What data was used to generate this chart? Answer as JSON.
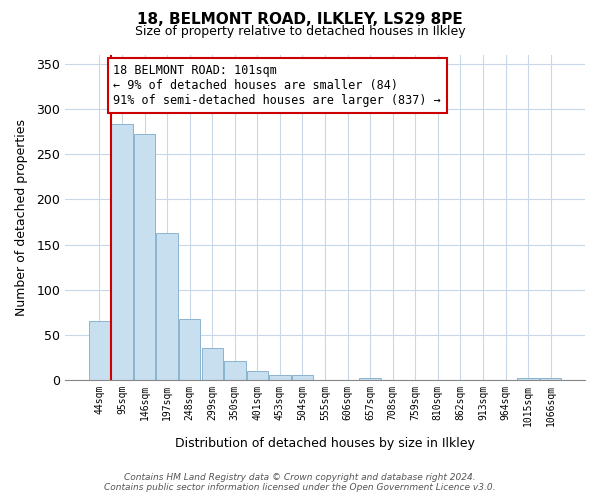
{
  "title": "18, BELMONT ROAD, ILKLEY, LS29 8PE",
  "subtitle": "Size of property relative to detached houses in Ilkley",
  "xlabel": "Distribution of detached houses by size in Ilkley",
  "ylabel": "Number of detached properties",
  "bar_color": "#c8dff0",
  "bar_edge_color": "#8ab4d0",
  "categories": [
    "44sqm",
    "95sqm",
    "146sqm",
    "197sqm",
    "248sqm",
    "299sqm",
    "350sqm",
    "401sqm",
    "453sqm",
    "504sqm",
    "555sqm",
    "606sqm",
    "657sqm",
    "708sqm",
    "759sqm",
    "810sqm",
    "862sqm",
    "913sqm",
    "964sqm",
    "1015sqm",
    "1066sqm"
  ],
  "values": [
    65,
    283,
    272,
    163,
    67,
    35,
    21,
    10,
    5,
    5,
    0,
    0,
    2,
    0,
    0,
    0,
    0,
    0,
    0,
    2,
    2
  ],
  "ylim": [
    0,
    360
  ],
  "yticks": [
    0,
    50,
    100,
    150,
    200,
    250,
    300,
    350
  ],
  "annotation_line1": "18 BELMONT ROAD: 101sqm",
  "annotation_line2": "← 9% of detached houses are smaller (84)",
  "annotation_line3": "91% of semi-detached houses are larger (837) →",
  "annotation_box_color": "#ffffff",
  "annotation_box_edge_color": "#cc0000",
  "property_line_color": "#cc0000",
  "footer_line1": "Contains HM Land Registry data © Crown copyright and database right 2024.",
  "footer_line2": "Contains public sector information licensed under the Open Government Licence v3.0.",
  "background_color": "#ffffff",
  "grid_color": "#c8d8e8"
}
